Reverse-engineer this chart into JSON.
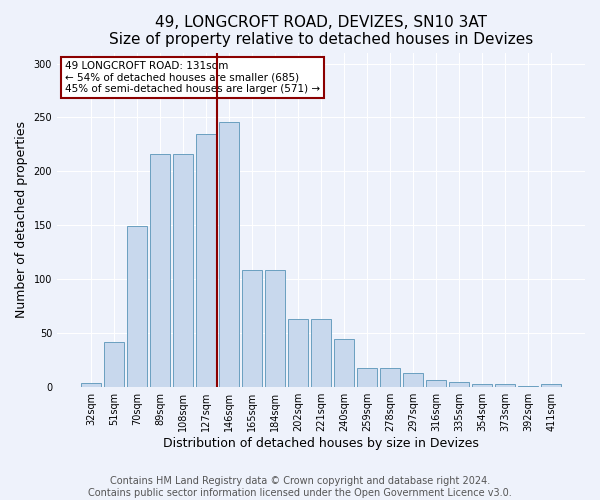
{
  "title": "49, LONGCROFT ROAD, DEVIZES, SN10 3AT",
  "subtitle": "Size of property relative to detached houses in Devizes",
  "xlabel": "Distribution of detached houses by size in Devizes",
  "ylabel": "Number of detached properties",
  "bar_color": "#c8d8ed",
  "bar_edge_color": "#6a9fc0",
  "property_line_color": "#8b0000",
  "annotation_text": "49 LONGCROFT ROAD: 131sqm\n← 54% of detached houses are smaller (685)\n45% of semi-detached houses are larger (571) →",
  "annotation_box_color": "white",
  "annotation_box_edge_color": "#8b0000",
  "categories": [
    "32sqm",
    "51sqm",
    "70sqm",
    "89sqm",
    "108sqm",
    "127sqm",
    "146sqm",
    "165sqm",
    "184sqm",
    "202sqm",
    "221sqm",
    "240sqm",
    "259sqm",
    "278sqm",
    "297sqm",
    "316sqm",
    "335sqm",
    "354sqm",
    "373sqm",
    "392sqm",
    "411sqm"
  ],
  "values": [
    4,
    42,
    149,
    216,
    216,
    235,
    246,
    109,
    109,
    63,
    63,
    45,
    18,
    18,
    13,
    7,
    5,
    3,
    3,
    1,
    3
  ],
  "property_line_x": 5.5,
  "ylim": [
    0,
    310
  ],
  "yticks": [
    0,
    50,
    100,
    150,
    200,
    250,
    300
  ],
  "background_color": "#eef2fb",
  "grid_color": "white",
  "footer_text": "Contains HM Land Registry data © Crown copyright and database right 2024.\nContains public sector information licensed under the Open Government Licence v3.0.",
  "title_fontsize": 11,
  "xlabel_fontsize": 9,
  "ylabel_fontsize": 9,
  "tick_fontsize": 7,
  "footer_fontsize": 7,
  "annotation_fontsize": 7.5
}
